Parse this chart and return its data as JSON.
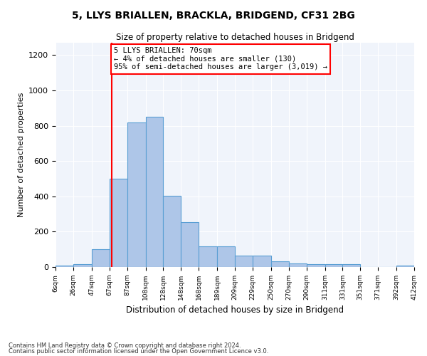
{
  "title1": "5, LLYS BRIALLEN, BRACKLA, BRIDGEND, CF31 2BG",
  "title2": "Size of property relative to detached houses in Bridgend",
  "xlabel": "Distribution of detached houses by size in Bridgend",
  "ylabel": "Number of detached properties",
  "footer1": "Contains HM Land Registry data © Crown copyright and database right 2024.",
  "footer2": "Contains public sector information licensed under the Open Government Licence v3.0.",
  "annotation_line1": "5 LLYS BRIALLEN: 70sqm",
  "annotation_line2": "← 4% of detached houses are smaller (130)",
  "annotation_line3": "95% of semi-detached houses are larger (3,019) →",
  "bar_color": "#aec6e8",
  "bar_edge_color": "#5a9fd4",
  "red_line_x": 70,
  "ylim": [
    0,
    1270
  ],
  "yticks": [
    0,
    200,
    400,
    600,
    800,
    1000,
    1200
  ],
  "bin_edges": [
    6,
    26,
    47,
    67,
    87,
    108,
    128,
    148,
    168,
    189,
    209,
    229,
    250,
    270,
    290,
    311,
    331,
    351,
    371,
    392,
    412
  ],
  "bar_heights": [
    10,
    15,
    100,
    500,
    820,
    850,
    405,
    255,
    115,
    115,
    65,
    65,
    33,
    20,
    15,
    15,
    15,
    0,
    0,
    10
  ]
}
